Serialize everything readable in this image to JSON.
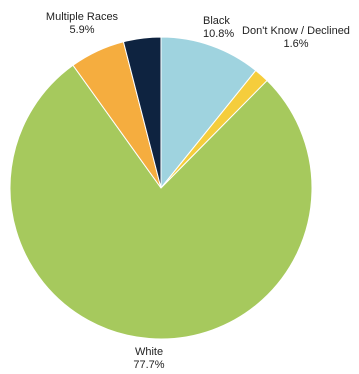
{
  "chart_data": {
    "type": "pie",
    "title": "",
    "slices": [
      {
        "label": "Black",
        "value": 10.8,
        "value_label": "10.8%",
        "color": "#9fd3df"
      },
      {
        "label": "Don't Know / Declined",
        "value": 1.6,
        "value_label": "1.6%",
        "color": "#f5cd3c"
      },
      {
        "label": "White",
        "value": 77.7,
        "value_label": "77.7%",
        "color": "#a6c95d"
      },
      {
        "label": "Multiple Races",
        "value": 5.9,
        "value_label": "5.9%",
        "color": "#f5ad3f"
      },
      {
        "label": "",
        "value": 4.0,
        "value_label": "",
        "color": "#0e2340"
      }
    ],
    "start_angle": "12 o'clock",
    "direction": "clockwise",
    "legend": "none"
  }
}
